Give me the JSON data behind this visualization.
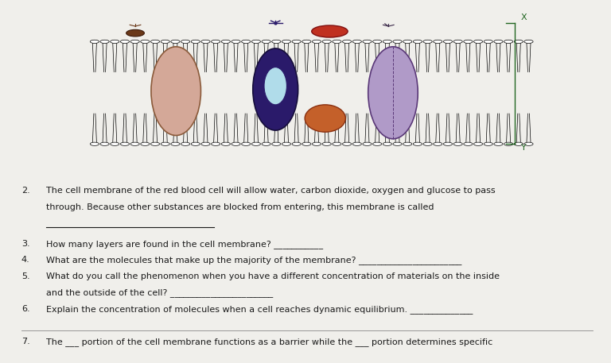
{
  "bg_color": "#f0efeb",
  "diagram_bg": "#ffffff",
  "questions": [
    {
      "num": "2.",
      "text": "The cell membrane of the red blood cell will allow water, carbon dioxide, oxygen and glucose to pass\nthrough. Because other substances are blocked from entering, this membrane is called",
      "answer_line": true,
      "indent": true
    },
    {
      "num": "3.",
      "text": "How many layers are found in the cell membrane? ___________",
      "answer_line": false
    },
    {
      "num": "4.",
      "text": "What are the molecules that make up the majority of the membrane? _______________________",
      "answer_line": false
    },
    {
      "num": "5.",
      "text": "What do you call the phenomenon when you have a different concentration of materials on the inside\nand the outside of the cell? _______________________",
      "answer_line": false
    },
    {
      "num": "6.",
      "text": "Explain the concentration of molecules when a cell reaches dynamic equilibrium. ______________",
      "answer_line": false
    },
    {
      "num": "7.",
      "text": "The ___ portion of the cell membrane functions as a barrier while the ___ portion determines specific",
      "answer_line": false
    }
  ],
  "font_size": 8.0,
  "text_color": "#1a1a1a",
  "font_family": "Comic Sans MS"
}
